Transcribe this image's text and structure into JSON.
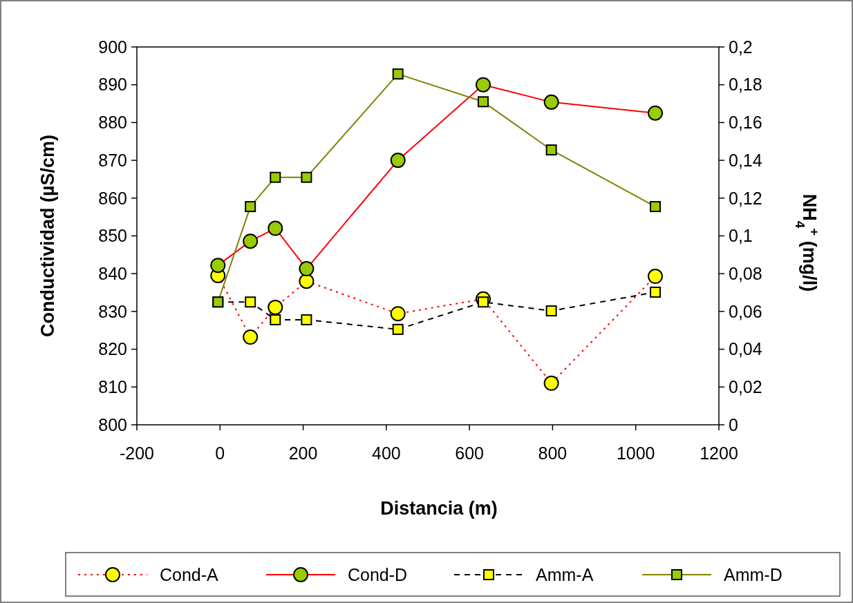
{
  "chart_data": {
    "type": "line",
    "xlabel": "Distancia (m)",
    "ylabel": "Conductividad (µS/cm)",
    "y2label": "NH$_{4}$$^{+}$ (mg/l)",
    "xlim": [
      -200,
      1200
    ],
    "xticks": [
      -200,
      0,
      200,
      400,
      600,
      800,
      1000,
      1200
    ],
    "ylim": [
      800,
      900
    ],
    "yticks": [
      800,
      810,
      820,
      830,
      840,
      850,
      860,
      870,
      880,
      890,
      900
    ],
    "y2lim": [
      0,
      0.2
    ],
    "y2ticks": [
      {
        "value": 0,
        "label": "0"
      },
      {
        "value": 0.02,
        "label": "0,02"
      },
      {
        "value": 0.04,
        "label": "0,04"
      },
      {
        "value": 0.06,
        "label": "0,06"
      },
      {
        "value": 0.08,
        "label": "0,08"
      },
      {
        "value": 0.1,
        "label": "0,1"
      },
      {
        "value": 0.12,
        "label": "0,12"
      },
      {
        "value": 0.14,
        "label": "0,14"
      },
      {
        "value": 0.16,
        "label": "0,16"
      },
      {
        "value": 0.18,
        "label": "0,18"
      },
      {
        "value": 0.2,
        "label": "0,2"
      }
    ],
    "x": [
      -5,
      73,
      133,
      208,
      428,
      633,
      797,
      1047
    ],
    "grid": false,
    "legend": "bottom",
    "series": [
      {
        "name": "Cond-A",
        "color": "#ff0000",
        "colors": [
          "#ffff00",
          "#ffff00",
          "#ffff00",
          "#ffff00",
          "#ffff00",
          "#ffff00",
          "#ffff00",
          "#ffff00"
        ],
        "marker": "circle",
        "line_style": "dotted",
        "values": [
          839.5,
          823.2,
          831.1,
          838,
          829.4,
          833.3,
          811,
          839.3
        ]
      },
      {
        "name": "Cond-D",
        "color": "#ff0000",
        "colors": [
          "#99cc00",
          "#99cc00",
          "#99cc00",
          "#99cc00",
          "#99cc00",
          "#99cc00",
          "#99cc00",
          "#99cc00"
        ],
        "marker": "circle",
        "line_style": "solid",
        "values": [
          842.2,
          848.6,
          852,
          841.3,
          870,
          890,
          885.4,
          882.5
        ]
      },
      {
        "name": "Amm-A",
        "color": "#000000",
        "colors": [
          "#ffff00",
          "#ffff00",
          "#ffff00",
          "#ffff00",
          "#ffff00",
          "#ffff00",
          "#ffff00",
          "#ffff00"
        ],
        "marker": "square",
        "line_style": "dashed",
        "axis": "y2",
        "values": [
          0.065,
          0.065,
          0.0556,
          0.0556,
          0.0505,
          0.065,
          0.0603,
          0.0702
        ]
      },
      {
        "name": "Amm-D",
        "color": "#808000",
        "colors": [
          "#99cc00",
          "#99cc00",
          "#99cc00",
          "#99cc00",
          "#99cc00",
          "#99cc00",
          "#99cc00",
          "#99cc00"
        ],
        "marker": "square",
        "line_style": "solid",
        "axis": "y2",
        "values": [
          0.065,
          0.1155,
          0.131,
          0.131,
          0.1857,
          0.171,
          0.1455,
          0.1155
        ]
      }
    ]
  }
}
